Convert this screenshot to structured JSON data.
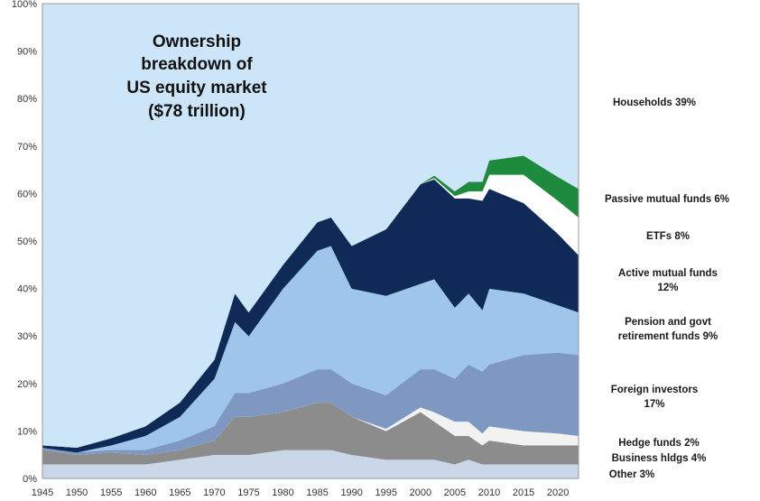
{
  "chart_data": {
    "type": "area",
    "stacked": true,
    "title_lines": [
      "Ownership",
      "breakdown  of",
      "US equity market",
      "($78 trillion)"
    ],
    "xlabel": "",
    "ylabel": "",
    "xlim": [
      1945,
      2023
    ],
    "ylim": [
      0,
      100
    ],
    "y_tick_labels": [
      "0%",
      "10%",
      "20%",
      "30%",
      "40%",
      "50%",
      "60%",
      "70%",
      "80%",
      "90%",
      "100%"
    ],
    "x_tick_labels": [
      "1945",
      "1950",
      "1955",
      "1960",
      "1965",
      "1970",
      "1975",
      "1980",
      "1985",
      "1990",
      "1995",
      "2000",
      "2005",
      "2010",
      "2015",
      "2020"
    ],
    "grid": false,
    "legend_position": "right",
    "x": [
      1945,
      1950,
      1955,
      1960,
      1965,
      1970,
      1973,
      1975,
      1980,
      1985,
      1987,
      1990,
      1995,
      2000,
      2002,
      2005,
      2007,
      2009,
      2010,
      2015,
      2020,
      2023
    ],
    "series": [
      {
        "name": "Other 3%",
        "color": "#c9d7e8",
        "values": [
          3,
          3,
          3,
          3,
          4,
          5,
          5,
          5,
          6,
          6,
          6,
          5,
          4,
          4,
          4,
          3,
          4,
          3,
          3,
          3,
          3,
          3
        ]
      },
      {
        "name": "Business  hldgs 4%",
        "color": "#8c8c8c",
        "values": [
          3,
          2,
          2.5,
          2,
          2,
          3,
          8,
          8,
          8,
          10,
          10,
          8,
          6,
          10,
          8,
          6,
          5,
          4,
          5,
          4,
          4,
          4
        ]
      },
      {
        "name": "Hedge funds  2%",
        "color": "#f2f2f2",
        "values": [
          0,
          0,
          0,
          0,
          0,
          0,
          0,
          0,
          0,
          0,
          0,
          0,
          0.5,
          1,
          2,
          3,
          3,
          2.5,
          3,
          3,
          2.5,
          2
        ]
      },
      {
        "name": "Foreign  investors\n17%",
        "color": "#7f98c2",
        "values": [
          0.5,
          0.5,
          0.5,
          1,
          2,
          3,
          5,
          5,
          6,
          7,
          7,
          7,
          7,
          8,
          9,
          9,
          12,
          13,
          13,
          16,
          17,
          17
        ]
      },
      {
        "name": "Pension and govt\nretirement funds 9%",
        "color": "#9fc6ea",
        "values": [
          0,
          0,
          1,
          3,
          5,
          10,
          15,
          12,
          20,
          25,
          26,
          20,
          21,
          18,
          19,
          15,
          15,
          13,
          16,
          13,
          10,
          9
        ]
      },
      {
        "name": "Active mutual funds\n12%",
        "color": "#0f2a57",
        "values": [
          0.5,
          1,
          1.5,
          2,
          3,
          4,
          6,
          5,
          5,
          6,
          6,
          9,
          14,
          21,
          21,
          23,
          20,
          23,
          21,
          19,
          15,
          12
        ]
      },
      {
        "name": "ETFs  8%",
        "color": "#ffffff",
        "values": [
          0,
          0,
          0,
          0,
          0,
          0,
          0,
          0,
          0,
          0,
          0,
          0,
          0,
          0,
          0.3,
          0.5,
          1.5,
          2,
          3,
          6,
          7,
          8
        ]
      },
      {
        "name": "Passive mutual funds  6%",
        "color": "#1e8a3e",
        "values": [
          0,
          0,
          0,
          0,
          0,
          0,
          0,
          0,
          0,
          0,
          0,
          0,
          0,
          0,
          0.5,
          1,
          2,
          2,
          3,
          4,
          5,
          6
        ]
      },
      {
        "name": "Households  39%",
        "color": "#cde5f8",
        "values": [
          93,
          93.5,
          91.5,
          89,
          84,
          75,
          61,
          65,
          55,
          46,
          45,
          51,
          47.5,
          38,
          36.2,
          39.5,
          37.5,
          37.5,
          33,
          32,
          36.5,
          39
        ]
      }
    ]
  }
}
